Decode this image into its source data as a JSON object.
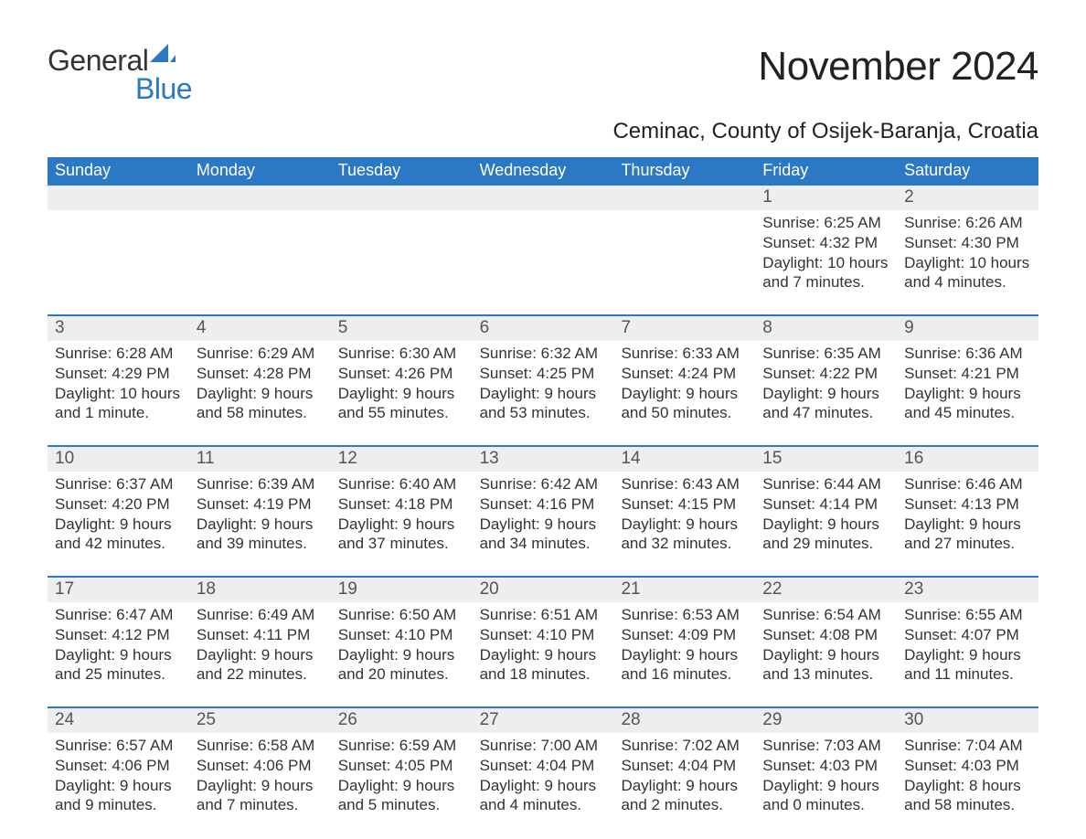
{
  "brand": {
    "word1": "General",
    "word2": "Blue",
    "accent_color": "#2b78c5"
  },
  "title": "November 2024",
  "location": "Ceminac, County of Osijek-Baranja, Croatia",
  "colors": {
    "header_bg": "#2b78c5",
    "header_text": "#ffffff",
    "daynum_bg": "#eeeeee",
    "daynum_text": "#555555",
    "body_text": "#333333",
    "divider": "#2b78c5",
    "page_bg": "#ffffff"
  },
  "typography": {
    "title_fontsize": 44,
    "location_fontsize": 24,
    "dayheader_fontsize": 18,
    "daynum_fontsize": 19,
    "details_fontsize": 17
  },
  "day_headers": [
    "Sunday",
    "Monday",
    "Tuesday",
    "Wednesday",
    "Thursday",
    "Friday",
    "Saturday"
  ],
  "weeks": [
    [
      {
        "day": "",
        "sunrise": "",
        "sunset": "",
        "daylight1": "",
        "daylight2": ""
      },
      {
        "day": "",
        "sunrise": "",
        "sunset": "",
        "daylight1": "",
        "daylight2": ""
      },
      {
        "day": "",
        "sunrise": "",
        "sunset": "",
        "daylight1": "",
        "daylight2": ""
      },
      {
        "day": "",
        "sunrise": "",
        "sunset": "",
        "daylight1": "",
        "daylight2": ""
      },
      {
        "day": "",
        "sunrise": "",
        "sunset": "",
        "daylight1": "",
        "daylight2": ""
      },
      {
        "day": "1",
        "sunrise": "Sunrise: 6:25 AM",
        "sunset": "Sunset: 4:32 PM",
        "daylight1": "Daylight: 10 hours",
        "daylight2": "and 7 minutes."
      },
      {
        "day": "2",
        "sunrise": "Sunrise: 6:26 AM",
        "sunset": "Sunset: 4:30 PM",
        "daylight1": "Daylight: 10 hours",
        "daylight2": "and 4 minutes."
      }
    ],
    [
      {
        "day": "3",
        "sunrise": "Sunrise: 6:28 AM",
        "sunset": "Sunset: 4:29 PM",
        "daylight1": "Daylight: 10 hours",
        "daylight2": "and 1 minute."
      },
      {
        "day": "4",
        "sunrise": "Sunrise: 6:29 AM",
        "sunset": "Sunset: 4:28 PM",
        "daylight1": "Daylight: 9 hours",
        "daylight2": "and 58 minutes."
      },
      {
        "day": "5",
        "sunrise": "Sunrise: 6:30 AM",
        "sunset": "Sunset: 4:26 PM",
        "daylight1": "Daylight: 9 hours",
        "daylight2": "and 55 minutes."
      },
      {
        "day": "6",
        "sunrise": "Sunrise: 6:32 AM",
        "sunset": "Sunset: 4:25 PM",
        "daylight1": "Daylight: 9 hours",
        "daylight2": "and 53 minutes."
      },
      {
        "day": "7",
        "sunrise": "Sunrise: 6:33 AM",
        "sunset": "Sunset: 4:24 PM",
        "daylight1": "Daylight: 9 hours",
        "daylight2": "and 50 minutes."
      },
      {
        "day": "8",
        "sunrise": "Sunrise: 6:35 AM",
        "sunset": "Sunset: 4:22 PM",
        "daylight1": "Daylight: 9 hours",
        "daylight2": "and 47 minutes."
      },
      {
        "day": "9",
        "sunrise": "Sunrise: 6:36 AM",
        "sunset": "Sunset: 4:21 PM",
        "daylight1": "Daylight: 9 hours",
        "daylight2": "and 45 minutes."
      }
    ],
    [
      {
        "day": "10",
        "sunrise": "Sunrise: 6:37 AM",
        "sunset": "Sunset: 4:20 PM",
        "daylight1": "Daylight: 9 hours",
        "daylight2": "and 42 minutes."
      },
      {
        "day": "11",
        "sunrise": "Sunrise: 6:39 AM",
        "sunset": "Sunset: 4:19 PM",
        "daylight1": "Daylight: 9 hours",
        "daylight2": "and 39 minutes."
      },
      {
        "day": "12",
        "sunrise": "Sunrise: 6:40 AM",
        "sunset": "Sunset: 4:18 PM",
        "daylight1": "Daylight: 9 hours",
        "daylight2": "and 37 minutes."
      },
      {
        "day": "13",
        "sunrise": "Sunrise: 6:42 AM",
        "sunset": "Sunset: 4:16 PM",
        "daylight1": "Daylight: 9 hours",
        "daylight2": "and 34 minutes."
      },
      {
        "day": "14",
        "sunrise": "Sunrise: 6:43 AM",
        "sunset": "Sunset: 4:15 PM",
        "daylight1": "Daylight: 9 hours",
        "daylight2": "and 32 minutes."
      },
      {
        "day": "15",
        "sunrise": "Sunrise: 6:44 AM",
        "sunset": "Sunset: 4:14 PM",
        "daylight1": "Daylight: 9 hours",
        "daylight2": "and 29 minutes."
      },
      {
        "day": "16",
        "sunrise": "Sunrise: 6:46 AM",
        "sunset": "Sunset: 4:13 PM",
        "daylight1": "Daylight: 9 hours",
        "daylight2": "and 27 minutes."
      }
    ],
    [
      {
        "day": "17",
        "sunrise": "Sunrise: 6:47 AM",
        "sunset": "Sunset: 4:12 PM",
        "daylight1": "Daylight: 9 hours",
        "daylight2": "and 25 minutes."
      },
      {
        "day": "18",
        "sunrise": "Sunrise: 6:49 AM",
        "sunset": "Sunset: 4:11 PM",
        "daylight1": "Daylight: 9 hours",
        "daylight2": "and 22 minutes."
      },
      {
        "day": "19",
        "sunrise": "Sunrise: 6:50 AM",
        "sunset": "Sunset: 4:10 PM",
        "daylight1": "Daylight: 9 hours",
        "daylight2": "and 20 minutes."
      },
      {
        "day": "20",
        "sunrise": "Sunrise: 6:51 AM",
        "sunset": "Sunset: 4:10 PM",
        "daylight1": "Daylight: 9 hours",
        "daylight2": "and 18 minutes."
      },
      {
        "day": "21",
        "sunrise": "Sunrise: 6:53 AM",
        "sunset": "Sunset: 4:09 PM",
        "daylight1": "Daylight: 9 hours",
        "daylight2": "and 16 minutes."
      },
      {
        "day": "22",
        "sunrise": "Sunrise: 6:54 AM",
        "sunset": "Sunset: 4:08 PM",
        "daylight1": "Daylight: 9 hours",
        "daylight2": "and 13 minutes."
      },
      {
        "day": "23",
        "sunrise": "Sunrise: 6:55 AM",
        "sunset": "Sunset: 4:07 PM",
        "daylight1": "Daylight: 9 hours",
        "daylight2": "and 11 minutes."
      }
    ],
    [
      {
        "day": "24",
        "sunrise": "Sunrise: 6:57 AM",
        "sunset": "Sunset: 4:06 PM",
        "daylight1": "Daylight: 9 hours",
        "daylight2": "and 9 minutes."
      },
      {
        "day": "25",
        "sunrise": "Sunrise: 6:58 AM",
        "sunset": "Sunset: 4:06 PM",
        "daylight1": "Daylight: 9 hours",
        "daylight2": "and 7 minutes."
      },
      {
        "day": "26",
        "sunrise": "Sunrise: 6:59 AM",
        "sunset": "Sunset: 4:05 PM",
        "daylight1": "Daylight: 9 hours",
        "daylight2": "and 5 minutes."
      },
      {
        "day": "27",
        "sunrise": "Sunrise: 7:00 AM",
        "sunset": "Sunset: 4:04 PM",
        "daylight1": "Daylight: 9 hours",
        "daylight2": "and 4 minutes."
      },
      {
        "day": "28",
        "sunrise": "Sunrise: 7:02 AM",
        "sunset": "Sunset: 4:04 PM",
        "daylight1": "Daylight: 9 hours",
        "daylight2": "and 2 minutes."
      },
      {
        "day": "29",
        "sunrise": "Sunrise: 7:03 AM",
        "sunset": "Sunset: 4:03 PM",
        "daylight1": "Daylight: 9 hours",
        "daylight2": "and 0 minutes."
      },
      {
        "day": "30",
        "sunrise": "Sunrise: 7:04 AM",
        "sunset": "Sunset: 4:03 PM",
        "daylight1": "Daylight: 8 hours",
        "daylight2": "and 58 minutes."
      }
    ]
  ]
}
